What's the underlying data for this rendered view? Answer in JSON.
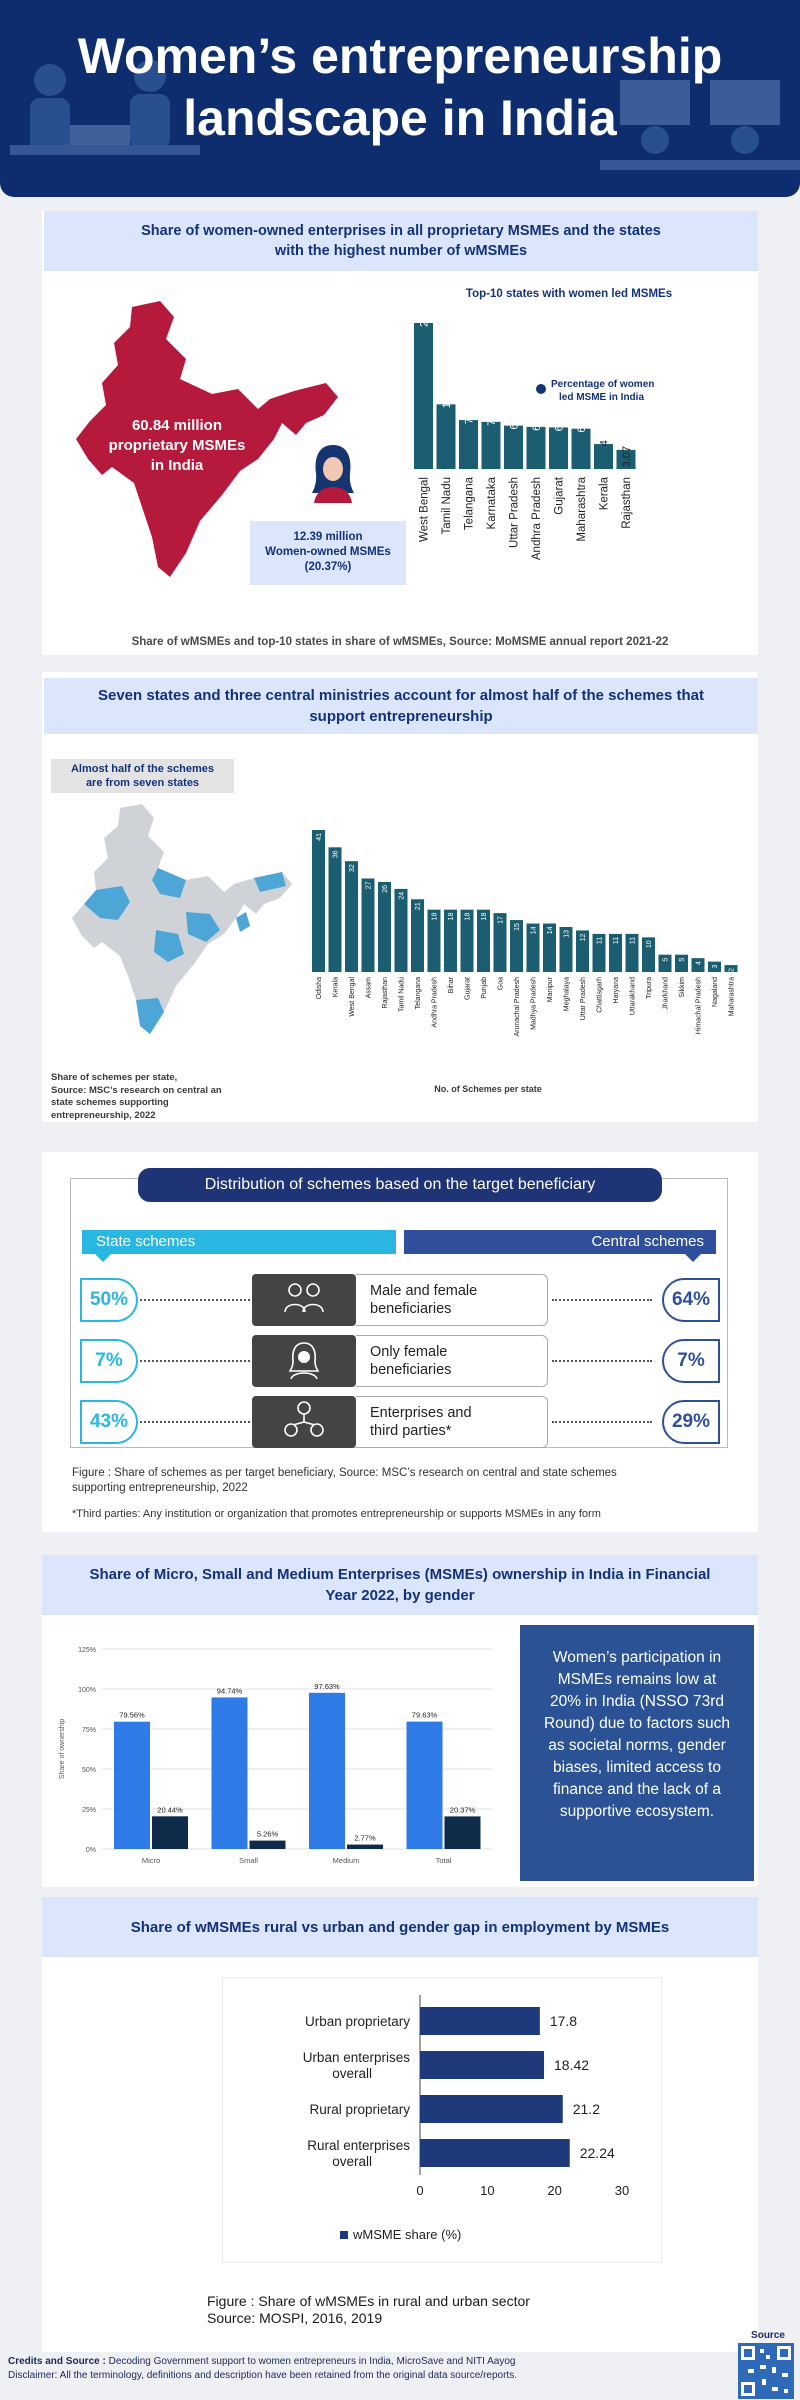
{
  "header": {
    "title_line1": "Women’s entrepreneurship",
    "title_line2": "landscape in India"
  },
  "s1": {
    "heading_line1": "Share of women-owned enterprises in all proprietary MSMEs and the states",
    "heading_line2": "with the highest number of wMSMEs",
    "map_label_line1": "60.84 million",
    "map_label_line2": "proprietary MSMEs",
    "map_label_line3": "in India",
    "box_line1": "12.39 million",
    "box_line2": "Women-owned MSMEs",
    "box_line3": "(20.37%)",
    "caption": "Share of wMSMEs and top-10 states in share of wMSMEs,  Source: MoMSME annual report 2021-22"
  },
  "s2": {
    "heading_line1": "Seven states and three central ministries account for almost half of the schemes that",
    "heading_line2": "support entrepreneurship",
    "tag_line1": "Almost half of the schemes",
    "tag_line2": "are from seven states",
    "map_note_line1": "Share of schemes per state,",
    "map_note_line2": "Source: MSC’s research on central an",
    "map_note_line3": "state schemes supporting",
    "map_note_line4": "entrepreneurship, 2022"
  },
  "s3": {
    "title": "Distribution of schemes based on the target beneficiary",
    "state_label": "State schemes",
    "central_label": "Central schemes",
    "rows": [
      {
        "state": "50%",
        "label_line1": "Male and female",
        "label_line2": "beneficiaries",
        "central": "64%",
        "icon": "couple-icon"
      },
      {
        "state": "7%",
        "label_line1": "Only female",
        "label_line2": "beneficiaries",
        "central": "7%",
        "icon": "woman-icon"
      },
      {
        "state": "43%",
        "label_line1": "Enterprises and",
        "label_line2": "third parties*",
        "central": "29%",
        "icon": "enterprise-network-icon"
      }
    ],
    "figure_line1": "Figure  : Share of schemes as per target beneficiary, Source: MSC’s research on central and state schemes",
    "figure_line2": "supporting entrepreneurship, 2022",
    "footnote": "*Third parties: Any institution or organization that promotes entrepreneurship or supports MSMEs in any form"
  },
  "s4": {
    "heading_line1": "Share of Micro, Small and Medium Enterprises (MSMEs) ownership in India in Financial",
    "heading_line2": "Year 2022, by gender",
    "info_lines": [
      "Women’s participation in",
      "MSMEs remains low at",
      "20% in India (NSSO 73rd",
      "Round) due to factors such",
      "as societal norms, gender",
      "biases, limited access to",
      "finance and the lack of a",
      "supportive ecosystem."
    ]
  },
  "s5": {
    "heading": "Share of wMSMEs rural vs urban and gender gap in employment by MSMEs",
    "figure_line1": "Figure : Share of wMSMEs in rural and urban sector",
    "figure_line2": "Source: MOSPI, 2016, 2019"
  },
  "footer": {
    "credits_label": "Credits and Source :",
    "credits_text": " Decoding Government support to women entrepreneurs in India, MicroSave and NITI Aayog",
    "disclaimer": "Disclaimer: All the terminology, definitions and description have been retained from the original data source/reports.",
    "qr_label": "Source"
  },
  "colors": {
    "navy": "#0e2d6e",
    "teal": "#1b5e72",
    "crimson": "#b5193b",
    "blue": "#2e7ae6",
    "dark": "#0f2b4a",
    "band": "#dbe5fb",
    "cyan": "#29b6e0",
    "royal": "#2f4f9a"
  },
  "chart_data": [
    {
      "type": "bar",
      "title": "Top-10 states with women led MSMEs",
      "categories": [
        "West Bengal",
        "Tamil Nadu",
        "Telangana",
        "Karnataka",
        "Uttar Pradesh",
        "Andhra Pradesh",
        "Gujarat",
        "Maharashtra",
        "Kerala",
        "Rajasthan"
      ],
      "values": [
        23.42,
        10.37,
        7.85,
        7.56,
        6.96,
        6.76,
        6.67,
        6.47,
        4,
        3.07
      ],
      "legend": "Percentage of women led MSME in India"
    },
    {
      "type": "bar",
      "xlabel": "No. of Schemes per state",
      "categories": [
        "Odisha",
        "Kerala",
        "West Bengal",
        "Assam",
        "Rajasthan",
        "Tamil Nadu",
        "Telangana",
        "Andhra Pradesh",
        "Bihar",
        "Gujarat",
        "Punjab",
        "Goa",
        "Arunachal Pradesh",
        "Madhya Pradesh",
        "Manipur",
        "Meghalaya",
        "Uttar Pradesh",
        "Chattisgarh",
        "Haryana",
        "Uttarakhand",
        "Tripura",
        "Jharkhand",
        "Sikkim",
        "Himachal Pradesh",
        "Nagaland",
        "Maharashtra"
      ],
      "values": [
        41,
        36,
        32,
        27,
        26,
        24,
        21,
        18,
        18,
        18,
        18,
        17,
        15,
        14,
        14,
        13,
        12,
        11,
        11,
        11,
        10,
        5,
        5,
        4,
        3,
        2
      ]
    },
    {
      "type": "bar",
      "ylabel": "Share of ownership",
      "categories": [
        "Micro",
        "Small",
        "Medium",
        "Total"
      ],
      "series": [
        {
          "name": "",
          "values": [
            79.56,
            94.74,
            97.63,
            79.63
          ]
        },
        {
          "name": "",
          "values": [
            20.44,
            5.26,
            2.77,
            20.37
          ]
        }
      ],
      "ylim": [
        0,
        125
      ],
      "yticks": [
        "0%",
        "25%",
        "50%",
        "75%",
        "100%",
        "125%"
      ],
      "data_labels": [
        [
          "79.56%",
          "94.74%",
          "97.63%",
          "79.63%"
        ],
        [
          "20.44%",
          "5.26%",
          "2.77%",
          "20.37%"
        ]
      ]
    },
    {
      "type": "bar",
      "orientation": "horizontal",
      "categories": [
        "Urban proprietary",
        "Urban enterprises overall",
        "Rural proprietary",
        "Rural enterprises overall"
      ],
      "values": [
        17.8,
        18.42,
        21.2,
        22.24
      ],
      "xlim": [
        0,
        30
      ],
      "xticks": [
        "0",
        "10",
        "20",
        "30"
      ],
      "legend": "wMSME share (%)"
    }
  ]
}
